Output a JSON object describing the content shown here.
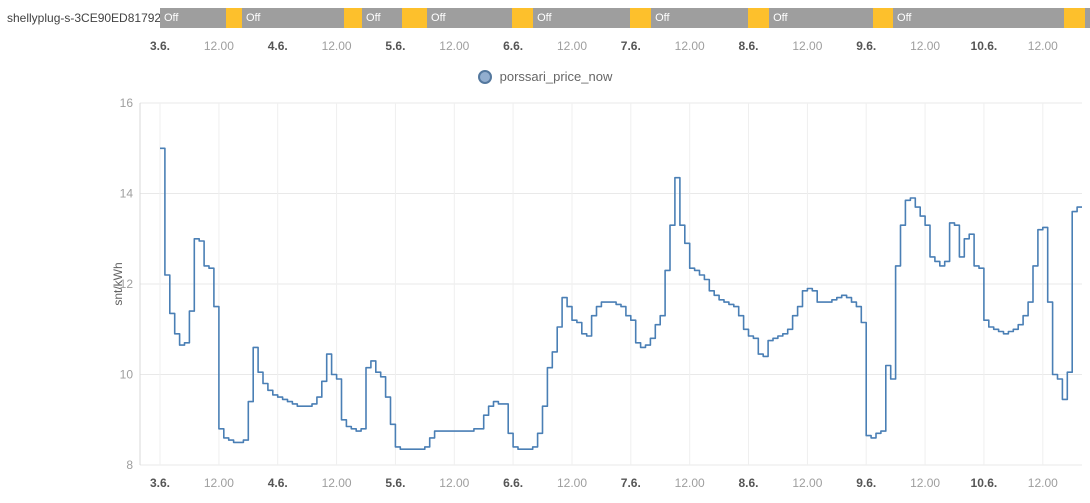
{
  "device_strip": {
    "label": "shellyplug-s-3CE90ED81792",
    "colors": {
      "off": "#9e9e9e",
      "on": "#fdc02c"
    },
    "segments": [
      {
        "state": "off",
        "pct": 7.1,
        "label": "Off"
      },
      {
        "state": "on",
        "pct": 1.72,
        "label": ""
      },
      {
        "state": "off",
        "pct": 10.97,
        "label": "Off"
      },
      {
        "state": "on",
        "pct": 1.94,
        "label": ""
      },
      {
        "state": "off",
        "pct": 4.3,
        "label": "Off"
      },
      {
        "state": "on",
        "pct": 2.69,
        "label": ""
      },
      {
        "state": "off",
        "pct": 9.14,
        "label": "Off"
      },
      {
        "state": "on",
        "pct": 2.26,
        "label": ""
      },
      {
        "state": "off",
        "pct": 10.43,
        "label": "Off"
      },
      {
        "state": "on",
        "pct": 2.26,
        "label": ""
      },
      {
        "state": "off",
        "pct": 10.43,
        "label": "Off"
      },
      {
        "state": "on",
        "pct": 2.26,
        "label": ""
      },
      {
        "state": "off",
        "pct": 11.18,
        "label": "Off"
      },
      {
        "state": "on",
        "pct": 2.15,
        "label": ""
      },
      {
        "state": "off",
        "pct": 18.39,
        "label": "Off"
      },
      {
        "state": "on",
        "pct": 2.26,
        "label": ""
      },
      {
        "state": "off",
        "pct": 0.52,
        "label": ""
      }
    ]
  },
  "legend": {
    "label": "porssari_price_now"
  },
  "chart_data": {
    "type": "line",
    "step": true,
    "title": "",
    "xlabel": "",
    "ylabel": "snt/kWh",
    "ylim": [
      8,
      16
    ],
    "yticks": [
      8,
      10,
      12,
      14,
      16
    ],
    "grid": true,
    "legend_position": "top-center",
    "x_unit": "hours since 3.6. 00:00",
    "total_hours": 188,
    "xticks": [
      {
        "hour": 0,
        "label": "3.6.",
        "bold": true
      },
      {
        "hour": 12,
        "label": "12.00",
        "bold": false
      },
      {
        "hour": 24,
        "label": "4.6.",
        "bold": true
      },
      {
        "hour": 36,
        "label": "12.00",
        "bold": false
      },
      {
        "hour": 48,
        "label": "5.6.",
        "bold": true
      },
      {
        "hour": 60,
        "label": "12.00",
        "bold": false
      },
      {
        "hour": 72,
        "label": "6.6.",
        "bold": true
      },
      {
        "hour": 84,
        "label": "12.00",
        "bold": false
      },
      {
        "hour": 96,
        "label": "7.6.",
        "bold": true
      },
      {
        "hour": 108,
        "label": "12.00",
        "bold": false
      },
      {
        "hour": 120,
        "label": "8.6.",
        "bold": true
      },
      {
        "hour": 132,
        "label": "12.00",
        "bold": false
      },
      {
        "hour": 144,
        "label": "9.6.",
        "bold": true
      },
      {
        "hour": 156,
        "label": "12.00",
        "bold": false
      },
      {
        "hour": 168,
        "label": "10.6.",
        "bold": true
      },
      {
        "hour": 180,
        "label": "12.00",
        "bold": false
      }
    ],
    "series": [
      {
        "name": "porssari_price_now",
        "color": "#4a7fb5",
        "values": [
          15.0,
          12.2,
          11.35,
          10.9,
          10.65,
          10.7,
          11.4,
          13.0,
          12.95,
          12.4,
          12.35,
          11.5,
          8.8,
          8.6,
          8.55,
          8.5,
          8.5,
          8.55,
          9.4,
          10.6,
          10.05,
          9.8,
          9.65,
          9.55,
          9.5,
          9.45,
          9.4,
          9.35,
          9.3,
          9.3,
          9.3,
          9.35,
          9.5,
          9.85,
          10.45,
          10.0,
          9.9,
          9.0,
          8.85,
          8.8,
          8.75,
          8.8,
          10.15,
          10.3,
          10.05,
          9.95,
          9.5,
          8.9,
          8.4,
          8.35,
          8.35,
          8.35,
          8.35,
          8.35,
          8.4,
          8.6,
          8.75,
          8.75,
          8.75,
          8.75,
          8.75,
          8.75,
          8.75,
          8.75,
          8.8,
          8.8,
          9.1,
          9.3,
          9.4,
          9.35,
          9.35,
          8.7,
          8.4,
          8.35,
          8.35,
          8.35,
          8.4,
          8.7,
          9.3,
          10.15,
          10.5,
          11.05,
          11.7,
          11.5,
          11.2,
          11.15,
          10.9,
          10.85,
          11.3,
          11.5,
          11.6,
          11.6,
          11.6,
          11.55,
          11.5,
          11.3,
          11.2,
          10.7,
          10.6,
          10.65,
          10.8,
          11.1,
          11.3,
          12.3,
          13.3,
          14.35,
          13.3,
          12.9,
          12.35,
          12.3,
          12.2,
          12.1,
          11.85,
          11.75,
          11.65,
          11.6,
          11.55,
          11.5,
          11.3,
          11.0,
          10.85,
          10.8,
          10.45,
          10.4,
          10.75,
          10.8,
          10.85,
          10.9,
          11.0,
          11.3,
          11.5,
          11.85,
          11.9,
          11.85,
          11.6,
          11.6,
          11.6,
          11.65,
          11.7,
          11.75,
          11.7,
          11.6,
          11.5,
          11.15,
          8.65,
          8.6,
          8.7,
          8.75,
          10.2,
          9.9,
          12.4,
          13.3,
          13.85,
          13.9,
          13.7,
          13.5,
          13.3,
          12.6,
          12.5,
          12.4,
          12.5,
          13.35,
          13.3,
          12.6,
          13.0,
          13.1,
          12.4,
          12.35,
          11.2,
          11.05,
          11.0,
          10.95,
          10.9,
          10.95,
          11.0,
          11.1,
          11.3,
          11.6,
          12.4,
          13.2,
          13.25,
          11.6,
          10.0,
          9.9,
          9.45,
          10.05,
          13.6,
          13.7
        ]
      }
    ]
  },
  "style": {
    "legend_dot_fill": "#92aecf",
    "legend_dot_border": "#54789e",
    "grid_color": "#e9e9e9",
    "vgrid_color": "#efefef",
    "axis_color": "#d9d9d9",
    "day_label_color": "#555555",
    "hour_label_color": "#9e9e9e",
    "ytick_color": "#9e9e9e",
    "ylabel_color": "#616161"
  }
}
